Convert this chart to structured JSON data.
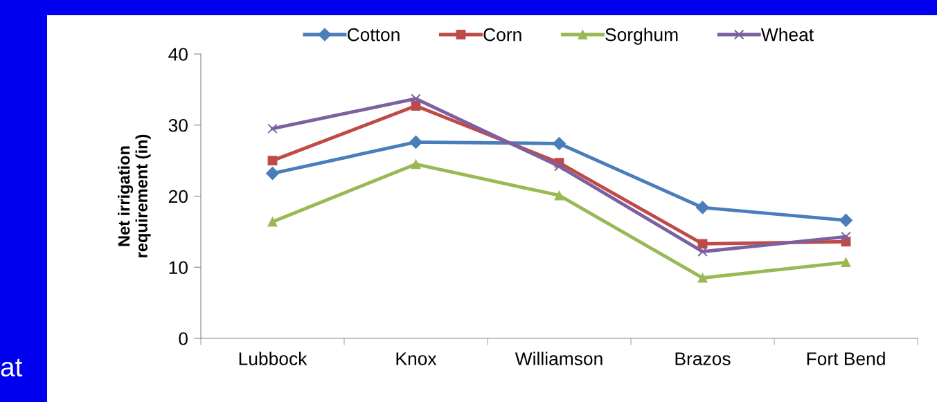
{
  "chart_data": {
    "type": "line",
    "ylabel": "Net irrigation\nrequirement (in)",
    "categories": [
      "Lubbock",
      "Knox",
      "Williamson",
      "Brazos",
      "Fort Bend"
    ],
    "series": [
      {
        "name": "Cotton",
        "color": "#4a7ebb",
        "marker": "diamond",
        "values": [
          23.2,
          27.6,
          27.4,
          18.4,
          16.6
        ]
      },
      {
        "name": "Corn",
        "color": "#be4b48",
        "marker": "square",
        "values": [
          25.0,
          32.7,
          24.7,
          13.3,
          13.6
        ]
      },
      {
        "name": "Sorghum",
        "color": "#98b954",
        "marker": "triangle",
        "values": [
          16.4,
          24.5,
          20.1,
          8.5,
          10.7
        ]
      },
      {
        "name": "Wheat",
        "color": "#7d60a0",
        "marker": "cross",
        "values": [
          29.5,
          33.7,
          24.2,
          12.2,
          14.3
        ]
      }
    ],
    "ylim": [
      0,
      40
    ],
    "yticks": [
      0,
      10,
      20,
      30,
      40
    ],
    "grid": false,
    "legend": "top",
    "line_style": "solid",
    "annotations": [
      "at"
    ]
  }
}
